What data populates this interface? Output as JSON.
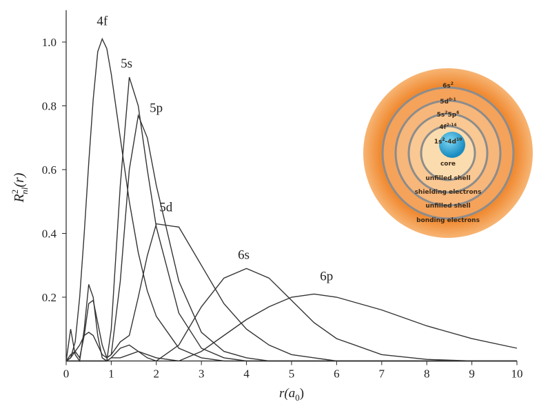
{
  "chart_data": {
    "type": "line",
    "ylabel": [
      "R",
      "2",
      "nl",
      "(r)"
    ],
    "xlabel": [
      "r(a",
      "0",
      ")"
    ],
    "x": [
      0,
      0.1,
      0.2,
      0.3,
      0.4,
      0.5,
      0.6,
      0.7,
      0.8,
      0.9,
      1.0,
      1.2,
      1.4,
      1.6,
      1.8,
      2.0,
      2.5,
      3,
      3.5,
      4,
      4.5,
      5,
      5.5,
      6,
      7,
      8,
      9,
      10
    ],
    "series": [
      {
        "name": "4f",
        "color": "#333333",
        "values": [
          0,
          0.01,
          0.06,
          0.2,
          0.4,
          0.62,
          0.82,
          0.97,
          1.01,
          0.98,
          0.9,
          0.7,
          0.5,
          0.34,
          0.22,
          0.14,
          0.04,
          0.01,
          0,
          0,
          0,
          0,
          0,
          0,
          0,
          0,
          0,
          0
        ]
      },
      {
        "name": "5s",
        "color": "#333333",
        "values": [
          0,
          0.1,
          0.02,
          0,
          0.1,
          0.24,
          0.2,
          0.08,
          0.01,
          0,
          0.1,
          0.55,
          0.89,
          0.8,
          0.6,
          0.42,
          0.15,
          0.04,
          0.01,
          0,
          0,
          0,
          0,
          0,
          0,
          0,
          0,
          0
        ]
      },
      {
        "name": "5p",
        "color": "#333333",
        "values": [
          0,
          0.02,
          0.03,
          0.01,
          0.08,
          0.18,
          0.19,
          0.12,
          0.05,
          0.01,
          0.02,
          0.25,
          0.6,
          0.77,
          0.7,
          0.55,
          0.25,
          0.09,
          0.03,
          0.01,
          0,
          0,
          0,
          0,
          0,
          0,
          0,
          0
        ]
      },
      {
        "name": "5d",
        "color": "#333333",
        "values": [
          0,
          0.01,
          0.03,
          0.05,
          0.08,
          0.09,
          0.08,
          0.05,
          0.02,
          0.01,
          0.02,
          0.06,
          0.08,
          0.2,
          0.33,
          0.43,
          0.42,
          0.3,
          0.18,
          0.1,
          0.05,
          0.02,
          0.01,
          0,
          0,
          0,
          0,
          0
        ]
      },
      {
        "name": "6s",
        "color": "#333333",
        "values": [
          0,
          0,
          0,
          0,
          0,
          0,
          0,
          0,
          0,
          0,
          0.01,
          0.04,
          0.05,
          0.03,
          0.01,
          0,
          0.05,
          0.17,
          0.26,
          0.29,
          0.26,
          0.19,
          0.12,
          0.07,
          0.02,
          0.005,
          0,
          0
        ]
      },
      {
        "name": "6p",
        "color": "#333333",
        "values": [
          0,
          0,
          0,
          0,
          0,
          0,
          0,
          0,
          0,
          0,
          0.01,
          0.01,
          0.02,
          0.03,
          0.02,
          0.01,
          0,
          0.03,
          0.08,
          0.13,
          0.17,
          0.2,
          0.21,
          0.2,
          0.16,
          0.11,
          0.07,
          0.04
        ]
      }
    ],
    "xlim": [
      0,
      10
    ],
    "ylim": [
      0,
      1.1
    ],
    "xticks": [
      0,
      1,
      2,
      3,
      4,
      5,
      6,
      7,
      8,
      9,
      10
    ],
    "yticks": [
      0.2,
      0.4,
      0.6,
      0.8,
      {
        "value": 1,
        "label": "1.0"
      }
    ]
  },
  "inset": {
    "shell_labels": [
      [
        "6s",
        "2"
      ],
      [
        "5d",
        "0-1"
      ],
      [
        "5s",
        "2",
        "5p",
        "6"
      ],
      [
        "4f",
        "2-14"
      ],
      [
        "1s",
        "2",
        "-4d",
        "10"
      ]
    ],
    "descriptions": [
      "core",
      "unfilled shell",
      "shielding electrons",
      "unfilled shell",
      "bonding electrons"
    ]
  }
}
